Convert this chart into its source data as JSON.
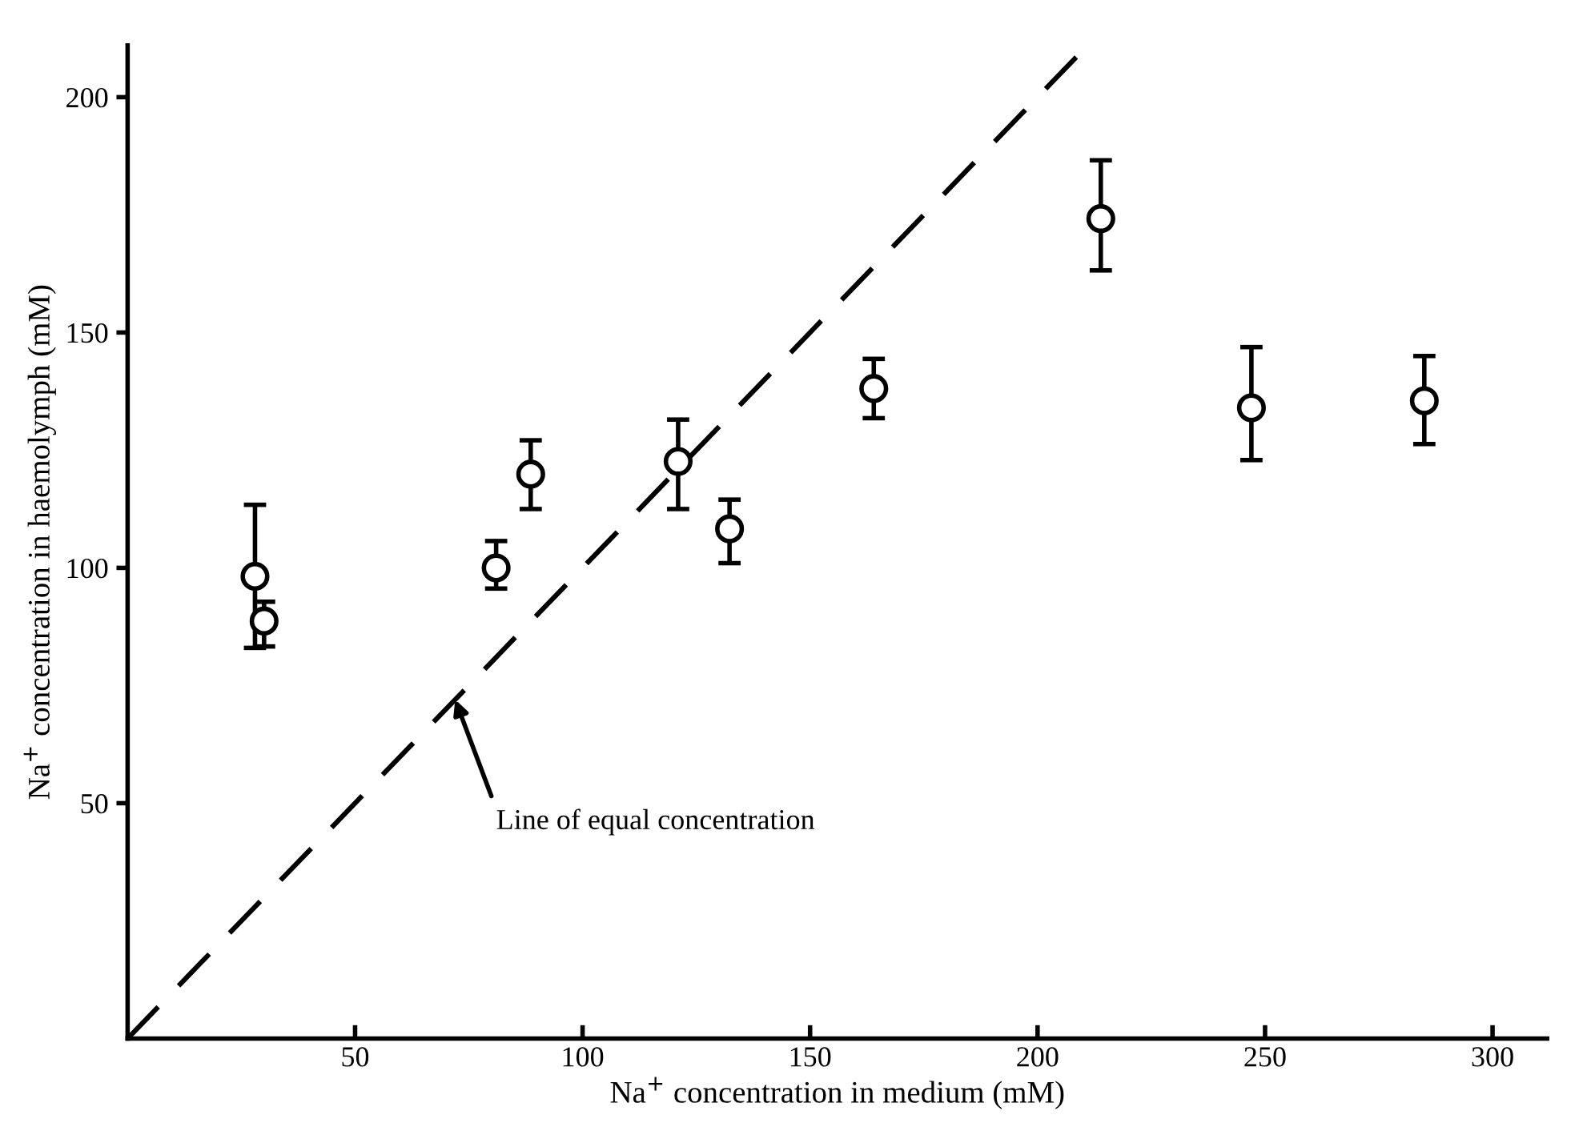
{
  "chart_data": {
    "type": "scatter",
    "xlabel": "Na$^{+}$ concentration in medium (mM)",
    "ylabel": "Na$^{+}$ concentration in haemolymph (mM)",
    "xlim": [
      0,
      312
    ],
    "ylim": [
      0,
      211
    ],
    "xticks": [
      50,
      100,
      150,
      200,
      250,
      300
    ],
    "yticks": [
      50,
      100,
      150,
      200
    ],
    "grid": false,
    "legend": false,
    "marker": "circle",
    "series": [
      {
        "color": "#000000",
        "x": [
          28,
          30,
          81,
          88.6,
          121,
          132.3,
          164,
          213.9,
          247,
          285
        ],
        "values": [
          98.2,
          88.7,
          100,
          119.9,
          122.6,
          108.3,
          138.1,
          174.2,
          134,
          135.5
        ],
        "errors": [
          [
            83,
            113.4
          ],
          [
            83.3,
            92.8
          ],
          [
            95.6,
            105.7
          ],
          [
            112.5,
            127.1
          ],
          [
            112.5,
            131.5
          ],
          [
            101,
            114.5
          ],
          [
            131.8,
            144.4
          ],
          [
            163.2,
            186.6
          ],
          [
            122.9,
            146.9
          ],
          [
            126.3,
            145
          ]
        ]
      },
      {
        "type": "line",
        "color": "#000000",
        "line_style": "dashed",
        "marker": "none",
        "x": [
          0,
          210
        ],
        "values": [
          0,
          210
        ]
      }
    ],
    "annotations": [
      {
        "text": "Line of equal concentration",
        "x": 72,
        "y": 72
      }
    ]
  }
}
